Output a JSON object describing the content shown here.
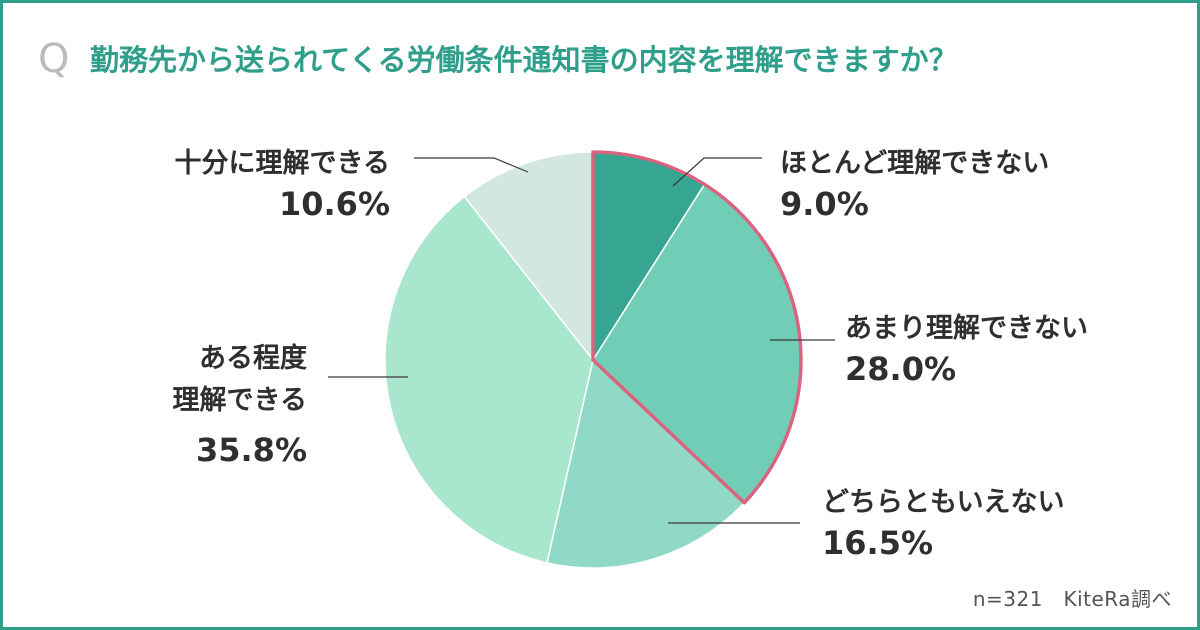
{
  "question": {
    "mark": "Q",
    "text": "勤務先から送られてくる労働条件通知書の内容を理解できますか？"
  },
  "source": "n=321　KiteRa調べ",
  "colors": {
    "frame": "#2f9e8a",
    "title": "#2f9e8a",
    "highlight_outline": "#d9647f"
  },
  "chart_data": {
    "type": "pie",
    "title": "勤務先から送られてくる労働条件通知書の内容を理解できますか？",
    "start": "12 o'clock, clockwise",
    "slices": [
      {
        "label": "ほとんど理解できない",
        "value": 9.0,
        "value_label": "9.0%",
        "color": "#36a592",
        "highlighted": true
      },
      {
        "label": "あまり理解できない",
        "value": 28.0,
        "value_label": "28.0%",
        "color": "#72cdb7",
        "highlighted": true
      },
      {
        "label": "どちらともいえない",
        "value": 16.5,
        "value_label": "16.5%",
        "color": "#8fd9c6",
        "highlighted": false
      },
      {
        "label": "ある程度\n理解できる",
        "value": 35.8,
        "value_label": "35.8%",
        "color": "#a8e6ce",
        "highlighted": false
      },
      {
        "label": "十分に理解できる",
        "value": 10.6,
        "value_label": "10.6%",
        "color": "#d3e7e2",
        "highlighted": false
      }
    ]
  }
}
